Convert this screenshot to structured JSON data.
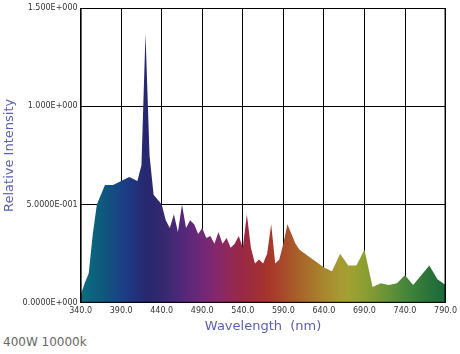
{
  "chart_data": {
    "type": "area",
    "x_label": "Wavelength  (nm)",
    "y_label": "Relative Intensity",
    "annotations": [
      "400W 10000k"
    ],
    "x": [
      340,
      345,
      350,
      355,
      360,
      370,
      380,
      390,
      400,
      410,
      415,
      420,
      425,
      430,
      440,
      445,
      450,
      455,
      460,
      465,
      470,
      475,
      480,
      485,
      490,
      495,
      500,
      505,
      510,
      515,
      520,
      525,
      530,
      535,
      540,
      545,
      550,
      555,
      560,
      565,
      570,
      575,
      580,
      585,
      590,
      595,
      600,
      605,
      610,
      620,
      630,
      640,
      650,
      660,
      670,
      680,
      690,
      700,
      710,
      720,
      730,
      740,
      750,
      760,
      770,
      780,
      790
    ],
    "values": [
      0.04,
      0.1,
      0.15,
      0.35,
      0.5,
      0.6,
      0.6,
      0.62,
      0.64,
      0.62,
      0.7,
      1.37,
      0.75,
      0.55,
      0.5,
      0.42,
      0.38,
      0.45,
      0.36,
      0.5,
      0.38,
      0.42,
      0.4,
      0.35,
      0.38,
      0.33,
      0.34,
      0.3,
      0.36,
      0.3,
      0.33,
      0.28,
      0.3,
      0.34,
      0.28,
      0.45,
      0.28,
      0.2,
      0.22,
      0.2,
      0.25,
      0.4,
      0.2,
      0.22,
      0.3,
      0.4,
      0.35,
      0.3,
      0.27,
      0.24,
      0.21,
      0.18,
      0.16,
      0.25,
      0.19,
      0.19,
      0.27,
      0.08,
      0.1,
      0.09,
      0.1,
      0.14,
      0.09,
      0.14,
      0.19,
      0.12,
      0.09
    ],
    "colors": [
      "#0e6e7e",
      "#0e6a7e",
      "#0d667e",
      "#0d627e",
      "#0d5e7e",
      "#10567e",
      "#144c82",
      "#1a4286",
      "#1e3882",
      "#22307a",
      "#242c74",
      "#262870",
      "#28286e",
      "#2c286e",
      "#34286e",
      "#3a2872",
      "#402874",
      "#462876",
      "#4c2878",
      "#52287a",
      "#58287a",
      "#5e287a",
      "#64287a",
      "#6a2878",
      "#702876",
      "#762874",
      "#7c2870",
      "#82286c",
      "#862868",
      "#8a2862",
      "#8e285c",
      "#922856",
      "#962850",
      "#98284a",
      "#9a2844",
      "#9c2a40",
      "#9e2c3c",
      "#a02e38",
      "#a23034",
      "#a43230",
      "#a6342c",
      "#a8382a",
      "#a83e2a",
      "#a8442a",
      "#a84a2a",
      "#a8502a",
      "#a8562a",
      "#a85c2a",
      "#a8622a",
      "#a86e2a",
      "#a87a2c",
      "#a8862e",
      "#a89030",
      "#a89a32",
      "#a2a032",
      "#98a032",
      "#8c9e32",
      "#809a34",
      "#729636",
      "#649238",
      "#568c3a",
      "#48863a",
      "#3c803a",
      "#327a3a",
      "#2a743a",
      "#226e3a",
      "#1c683a"
    ],
    "xlim": [
      340,
      790
    ],
    "xticks": [
      {
        "value": 340,
        "label": "340.0"
      },
      {
        "value": 390,
        "label": "390.0"
      },
      {
        "value": 440,
        "label": "440.0"
      },
      {
        "value": 490,
        "label": "490.0"
      },
      {
        "value": 540,
        "label": "540.0"
      },
      {
        "value": 590,
        "label": "590.0"
      },
      {
        "value": 640,
        "label": "640.0"
      },
      {
        "value": 690,
        "label": "690.0"
      },
      {
        "value": 740,
        "label": "740.0"
      },
      {
        "value": 790,
        "label": "790.0"
      }
    ],
    "ylim": [
      0,
      1.5
    ],
    "yticks": [
      {
        "value": 0,
        "label": "0.0000E+000"
      },
      {
        "value": 0.5,
        "label": "5.0000E-001"
      },
      {
        "value": 1,
        "label": "1.000E+000"
      },
      {
        "value": 1.5,
        "label": "1.500E+000"
      }
    ],
    "grid": true
  }
}
